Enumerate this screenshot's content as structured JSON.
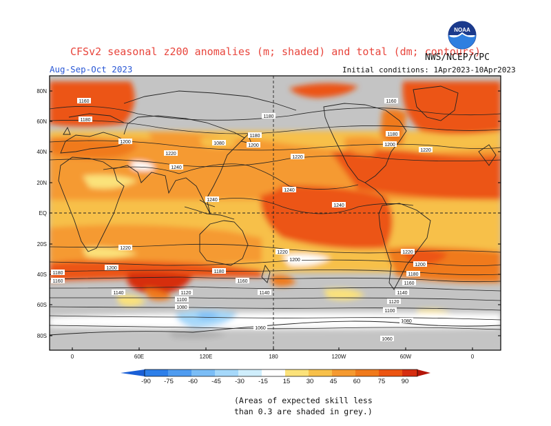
{
  "header": {
    "title": "CFSv2 seasonal z200 anomalies (m; shaded) and total (dm; contours)",
    "period": "Aug-Sep-Oct 2023",
    "agency": "NWS/NCEP/CPC",
    "initial_conditions": "Initial conditions: 1Apr2023-10Apr2023",
    "logo_text": "NOAA"
  },
  "map": {
    "lat_labels": [
      "80N",
      "60N",
      "40N",
      "20N",
      "EQ",
      "20S",
      "40S",
      "60S",
      "80S"
    ],
    "lon_labels": [
      "0",
      "60E",
      "120E",
      "180",
      "120W",
      "60W",
      "0"
    ],
    "contour_labels": [
      "1160",
      "1180",
      "1200",
      "1220",
      "1240",
      "1240",
      "1240",
      "1240",
      "1220",
      "1220",
      "1220",
      "1220",
      "1200",
      "1200",
      "1180",
      "1180",
      "1160",
      "1160",
      "1180",
      "1200",
      "1200",
      "1220",
      "1180",
      "1180",
      "1200",
      "1180",
      "1160",
      "1140",
      "1120",
      "1100",
      "1080",
      "1060",
      "1140",
      "1120",
      "1100",
      "1080",
      "1060",
      "1080",
      "1160",
      "1140"
    ]
  },
  "colorbar": {
    "values": [
      "-90",
      "-75",
      "-60",
      "-45",
      "-30",
      "-15",
      "15",
      "30",
      "45",
      "60",
      "75",
      "90"
    ],
    "colors": [
      "#1a5fd6",
      "#2d7fe9",
      "#4f9cf0",
      "#7bbdf6",
      "#a5d8fa",
      "#cfeefc",
      "#ffffff",
      "#fbe27a",
      "#f7c04a",
      "#f59a30",
      "#f07a1c",
      "#ec5512",
      "#d62d10",
      "#b41508"
    ],
    "grey": "#c4c4c4"
  },
  "footnote": {
    "line1": "(Areas of expected skill less",
    "line2": "than 0.3 are shaded in grey.)"
  }
}
